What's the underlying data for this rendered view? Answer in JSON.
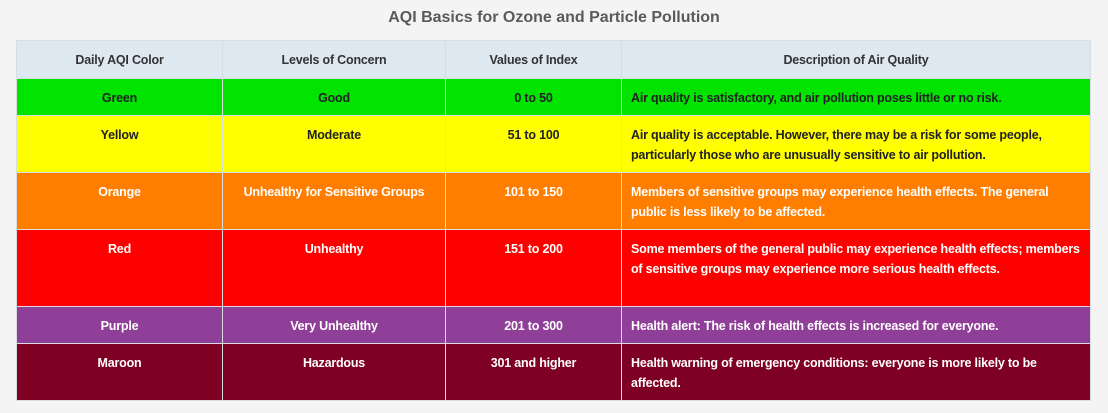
{
  "header": {
    "title": "AQI Basics for Ozone and Particle Pollution"
  },
  "table": {
    "columns": [
      "Daily AQI Color",
      "Levels of Concern",
      "Values of Index",
      "Description of Air Quality"
    ],
    "rows": [
      {
        "cells": [
          "Green",
          "Good",
          "0 to 50",
          "Air quality is satisfactory, and air pollution poses little or no risk."
        ],
        "color": "#00e400",
        "text_color": "#222222"
      },
      {
        "cells": [
          "Yellow",
          "Moderate",
          "51 to 100",
          "Air quality is acceptable. However, there may be a risk for some people, particularly those who are unusually sensitive to air pollution."
        ],
        "color": "#ffff00",
        "text_color": "#222222"
      },
      {
        "cells": [
          "Orange",
          "Unhealthy for Sensitive Groups",
          "101 to 150",
          "Members of sensitive groups may experience health effects. The general public is less likely to be affected."
        ],
        "color": "#ff7e00",
        "text_color": "#ffffff"
      },
      {
        "cells": [
          "Red",
          "Unhealthy",
          "151 to 200",
          "Some members of the general public may experience health effects; members of sensitive groups may experience more serious health effects."
        ],
        "color": "#ff0000",
        "text_color": "#ffffff"
      },
      {
        "cells": [
          "Purple",
          "Very Unhealthy",
          "201 to 300",
          "Health alert: The risk of health effects is increased for everyone."
        ],
        "color": "#8f3f97",
        "text_color": "#ffffff"
      },
      {
        "cells": [
          "Maroon",
          "Hazardous",
          "301 and higher",
          "Health warning of emergency conditions: everyone is more likely to be affected."
        ],
        "color": "#7e0023",
        "text_color": "#ffffff"
      }
    ]
  }
}
